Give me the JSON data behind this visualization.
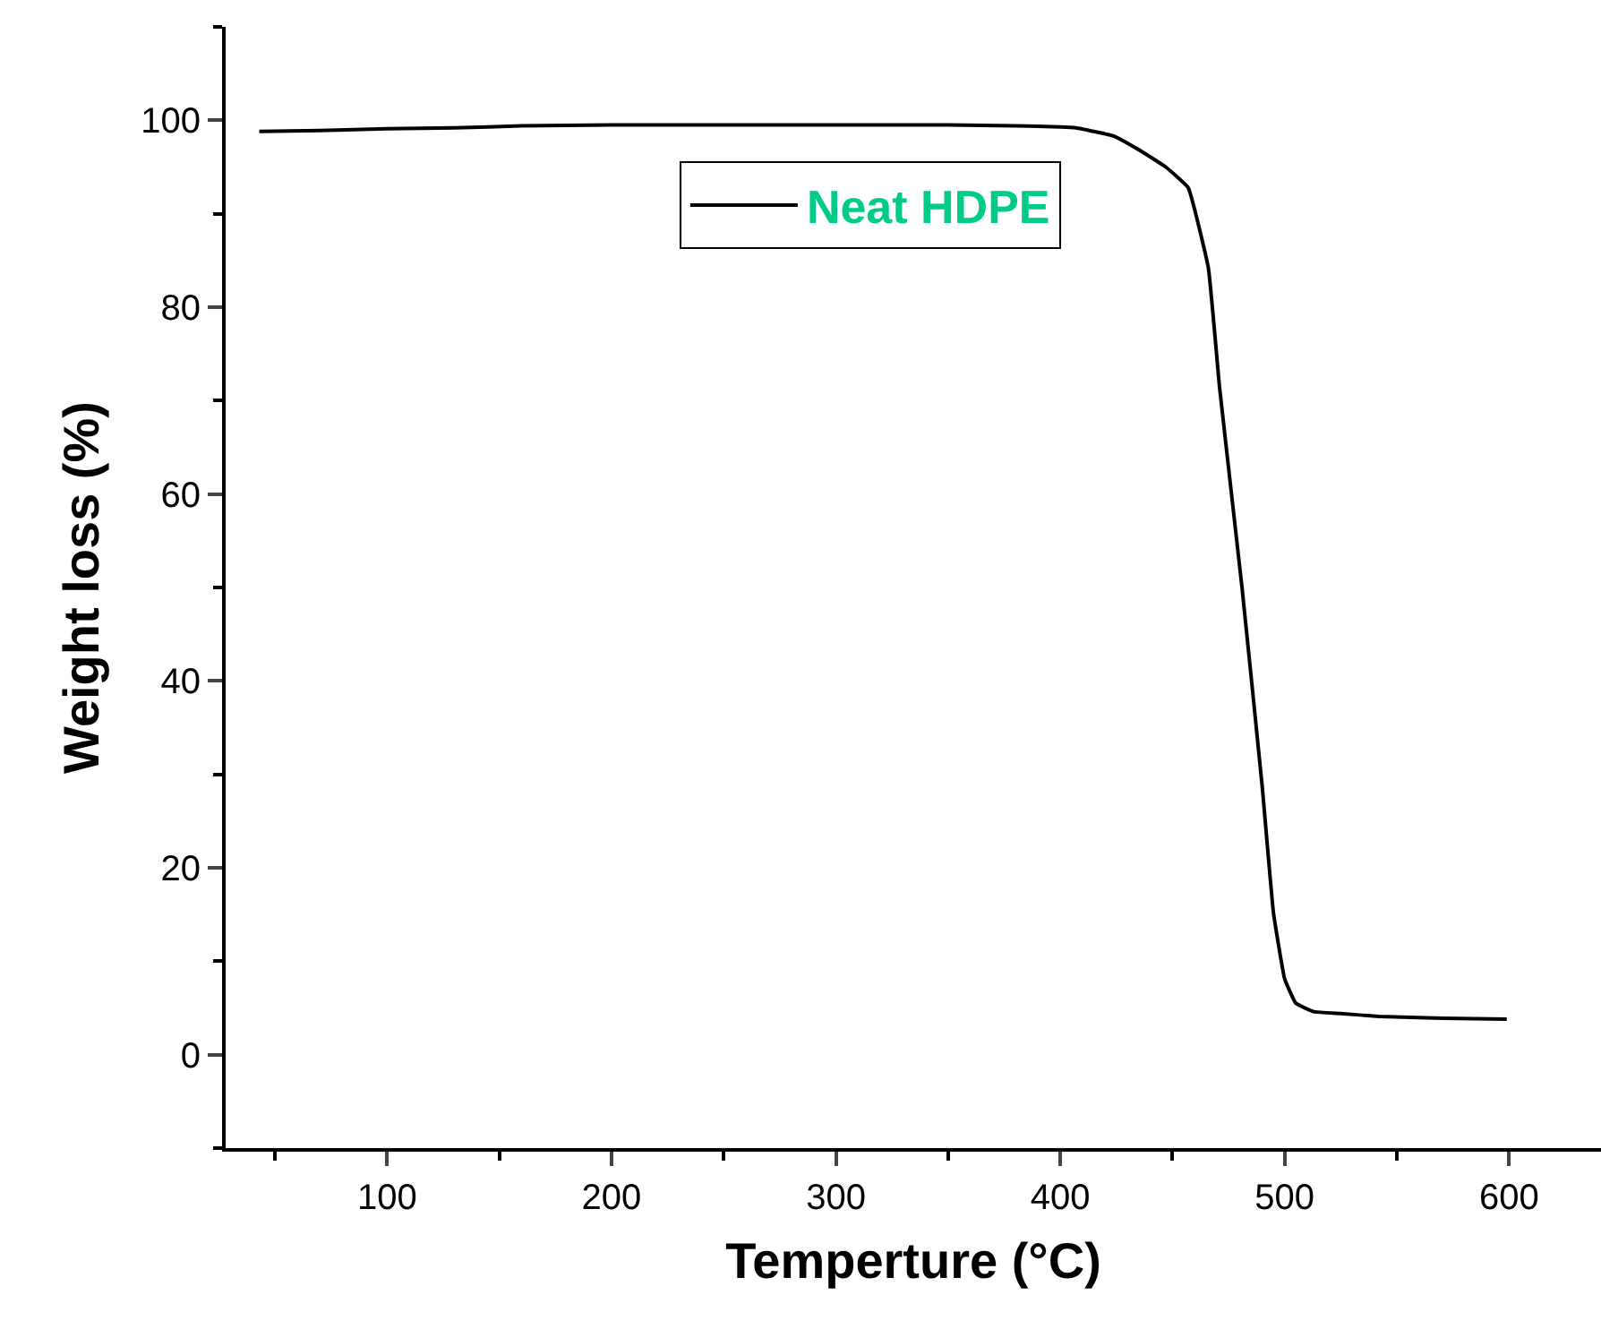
{
  "chart_data": {
    "type": "line",
    "xlabel": "Temperture (°C)",
    "ylabel": "Weight loss (%)",
    "x": [
      43,
      70,
      100,
      130,
      160,
      200,
      250,
      300,
      350,
      380,
      400,
      407,
      424,
      436,
      447,
      457,
      466,
      471,
      481,
      490,
      495,
      500,
      505,
      513,
      525,
      542,
      570,
      599
    ],
    "series": [
      {
        "name": "Neat HDPE",
        "color": "#000000",
        "values": [
          98.8,
          98.9,
          99.1,
          99.2,
          99.4,
          99.5,
          99.5,
          99.5,
          99.5,
          99.4,
          99.3,
          99.2,
          98.3,
          96.7,
          95.0,
          92.8,
          84.2,
          71.4,
          50.0,
          28.7,
          15.2,
          8.1,
          5.5,
          4.6,
          4.4,
          4.1,
          3.9,
          3.8
        ]
      }
    ],
    "xlim": [
      28,
      641
    ],
    "ylim": [
      -10,
      110
    ],
    "xticks": [
      100,
      200,
      300,
      400,
      500,
      600
    ],
    "yticks": [
      0,
      20,
      40,
      60,
      80,
      100
    ],
    "legend": "top left",
    "marker": "none",
    "line_style": "solid"
  }
}
